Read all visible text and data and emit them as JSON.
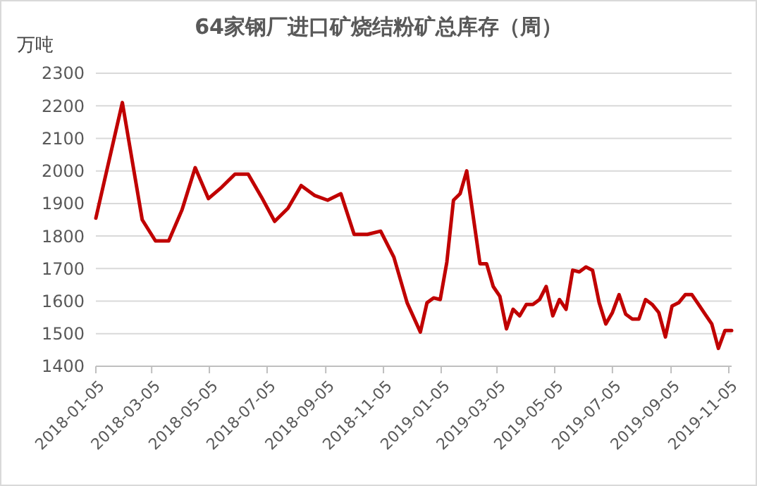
{
  "chart_data": {
    "type": "line",
    "title": "64家钢厂进口矿烧结粉矿总库存（周）",
    "ylabel": "万吨",
    "x": [
      "2018-01-05",
      "2018-02-02",
      "2018-02-23",
      "2018-03-09",
      "2018-03-23",
      "2018-04-06",
      "2018-04-20",
      "2018-05-04",
      "2018-05-18",
      "2018-06-01",
      "2018-06-15",
      "2018-06-29",
      "2018-07-13",
      "2018-07-27",
      "2018-08-10",
      "2018-08-24",
      "2018-09-07",
      "2018-09-21",
      "2018-10-05",
      "2018-10-19",
      "2018-11-02",
      "2018-11-16",
      "2018-11-30",
      "2018-12-14",
      "2018-12-21",
      "2018-12-28",
      "2019-01-04",
      "2019-01-11",
      "2019-01-18",
      "2019-01-25",
      "2019-02-01",
      "2019-02-15",
      "2019-02-22",
      "2019-03-01",
      "2019-03-08",
      "2019-03-15",
      "2019-03-22",
      "2019-03-29",
      "2019-04-05",
      "2019-04-12",
      "2019-04-19",
      "2019-04-26",
      "2019-05-03",
      "2019-05-10",
      "2019-05-17",
      "2019-05-24",
      "2019-05-31",
      "2019-06-07",
      "2019-06-14",
      "2019-06-21",
      "2019-06-28",
      "2019-07-05",
      "2019-07-12",
      "2019-07-19",
      "2019-07-26",
      "2019-08-02",
      "2019-08-09",
      "2019-08-16",
      "2019-08-23",
      "2019-08-30",
      "2019-09-06",
      "2019-09-13",
      "2019-09-20",
      "2019-09-27",
      "2019-10-04",
      "2019-10-11",
      "2019-10-18",
      "2019-10-25",
      "2019-11-01",
      "2019-11-08"
    ],
    "series": [
      {
        "color": "#c00000",
        "values": [
          1855,
          2210,
          1850,
          1785,
          1785,
          1880,
          2010,
          1915,
          1950,
          1990,
          1990,
          1920,
          1845,
          1885,
          1955,
          1925,
          1910,
          1930,
          1805,
          1805,
          1815,
          1735,
          1595,
          1505,
          1595,
          1610,
          1605,
          1720,
          1910,
          1930,
          2000,
          1715,
          1715,
          1645,
          1615,
          1515,
          1575,
          1555,
          1590,
          1590,
          1605,
          1645,
          1555,
          1605,
          1575,
          1695,
          1690,
          1705,
          1695,
          1595,
          1530,
          1565,
          1620,
          1560,
          1545,
          1545,
          1605,
          1590,
          1565,
          1490,
          1585,
          1595,
          1620,
          1620,
          1590,
          1560,
          1530,
          1455,
          1510,
          1510
        ]
      }
    ],
    "xlim": [
      "2018-01-05",
      "2019-11-08"
    ],
    "xticks": [
      {
        "value": "2018-01-05",
        "label": "2018-01-05"
      },
      {
        "value": "2018-03-05",
        "label": "2018-03-05"
      },
      {
        "value": "2018-05-05",
        "label": "2018-05-05"
      },
      {
        "value": "2018-07-05",
        "label": "2018-07-05"
      },
      {
        "value": "2018-09-05",
        "label": "2018-09-05"
      },
      {
        "value": "2018-11-05",
        "label": "2018-11-05"
      },
      {
        "value": "2019-01-05",
        "label": "2019-01-05"
      },
      {
        "value": "2019-03-05",
        "label": "2019-03-05"
      },
      {
        "value": "2019-05-05",
        "label": "2019-05-05"
      },
      {
        "value": "2019-07-05",
        "label": "2019-07-05"
      },
      {
        "value": "2019-09-05",
        "label": "2019-09-05"
      },
      {
        "value": "2019-11-05",
        "label": "2019-11-05"
      }
    ],
    "ylim": [
      1400,
      2300
    ],
    "yticks": [
      1400,
      1500,
      1600,
      1700,
      1800,
      1900,
      2000,
      2100,
      2200,
      2300
    ],
    "grid": "y",
    "marker": "none",
    "line_style": "solid"
  }
}
